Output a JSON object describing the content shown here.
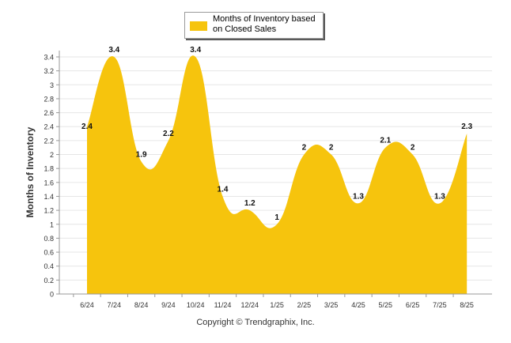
{
  "chart_data": {
    "type": "area",
    "categories": [
      "6/24",
      "7/24",
      "8/24",
      "9/24",
      "10/24",
      "11/24",
      "12/24",
      "1/25",
      "2/25",
      "3/25",
      "4/25",
      "5/25",
      "6/25",
      "7/25",
      "8/25"
    ],
    "series": [
      {
        "name": "Months of Inventory based on Closed Sales",
        "values": [
          2.4,
          3.4,
          1.9,
          2.2,
          3.4,
          1.4,
          1.2,
          1,
          2,
          2,
          1.3,
          2.1,
          2,
          1.3,
          2.3
        ],
        "data_labels": [
          "2.4",
          "3.4",
          "1.9",
          "2.2",
          "3.4",
          "1.4",
          "1.2",
          "1",
          "2",
          "2",
          "1.3",
          "2.1",
          "2",
          "1.3",
          "2.3"
        ]
      }
    ],
    "ylabel": "Months of Inventory",
    "xlabel": "",
    "ylim": [
      0,
      3.4
    ],
    "yticks": [
      "0",
      "0.2",
      "0.4",
      "0.6",
      "0.8",
      "1",
      "1.2",
      "1.4",
      "1.6",
      "1.8",
      "2",
      "2.2",
      "2.4",
      "2.6",
      "2.8",
      "3",
      "3.2",
      "3.4"
    ],
    "grid": true,
    "legend_position": "top-center",
    "colors": {
      "area": "#f6c40d",
      "grid": "#e6e6e6",
      "axis": "#999999"
    }
  },
  "footer": {
    "copyright": "Copyright © Trendgraphix, Inc."
  }
}
